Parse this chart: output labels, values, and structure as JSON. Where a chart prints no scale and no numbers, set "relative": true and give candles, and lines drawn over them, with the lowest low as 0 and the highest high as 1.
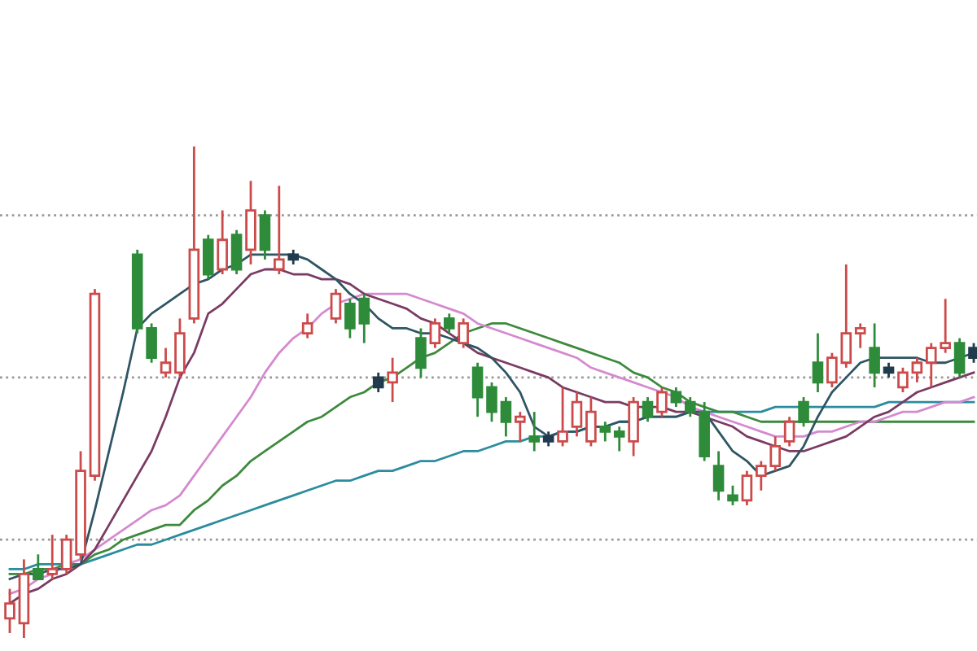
{
  "chart_data": {
    "type": "candlestick",
    "relative": true,
    "categories": [
      null,
      null,
      null,
      null,
      null,
      null,
      null,
      null,
      null,
      null,
      null,
      null,
      null,
      null,
      null,
      null,
      null,
      null,
      null,
      null,
      null,
      null,
      null,
      null,
      null,
      null,
      null,
      null,
      null,
      null,
      null,
      null,
      null,
      null,
      null,
      null,
      null,
      null,
      null,
      null,
      null,
      null,
      null,
      null,
      null,
      null,
      null,
      null,
      null,
      null,
      null,
      null,
      null,
      null,
      null,
      null,
      null,
      null,
      null,
      null,
      null,
      null,
      null,
      null,
      null,
      null,
      null,
      null,
      null
    ],
    "ohlc": [
      [
        0.04,
        0.1,
        0.01,
        0.07
      ],
      [
        0.03,
        0.16,
        0.0,
        0.13
      ],
      [
        0.14,
        0.17,
        0.12,
        0.12
      ],
      [
        0.13,
        0.21,
        0.12,
        0.14
      ],
      [
        0.14,
        0.21,
        0.13,
        0.2
      ],
      [
        0.17,
        0.38,
        0.16,
        0.34
      ],
      [
        0.33,
        0.71,
        0.32,
        0.7
      ],
      null,
      null,
      [
        0.78,
        0.79,
        0.62,
        0.63
      ],
      [
        0.63,
        0.64,
        0.56,
        0.57
      ],
      [
        0.54,
        0.59,
        0.53,
        0.56
      ],
      [
        0.54,
        0.65,
        0.53,
        0.62
      ],
      [
        0.65,
        1.0,
        0.64,
        0.79
      ],
      [
        0.81,
        0.82,
        0.73,
        0.74
      ],
      [
        0.75,
        0.87,
        0.74,
        0.81
      ],
      [
        0.82,
        0.83,
        0.74,
        0.75
      ],
      [
        0.79,
        0.93,
        0.76,
        0.87
      ],
      [
        0.86,
        0.87,
        0.77,
        0.79
      ],
      [
        0.75,
        0.92,
        0.74,
        0.77
      ],
      [
        0.78,
        0.79,
        0.76,
        0.77
      ],
      [
        0.62,
        0.66,
        0.61,
        0.64
      ],
      null,
      [
        0.65,
        0.71,
        0.64,
        0.7
      ],
      [
        0.68,
        0.69,
        0.61,
        0.63
      ],
      [
        0.69,
        0.7,
        0.6,
        0.64
      ],
      [
        0.53,
        0.54,
        0.5,
        0.51
      ],
      [
        0.52,
        0.57,
        0.48,
        0.54
      ],
      null,
      [
        0.61,
        0.63,
        0.53,
        0.55
      ],
      [
        0.6,
        0.65,
        0.59,
        0.64
      ],
      [
        0.65,
        0.66,
        0.62,
        0.63
      ],
      [
        0.6,
        0.65,
        0.59,
        0.64
      ],
      [
        0.55,
        0.56,
        0.45,
        0.49
      ],
      [
        0.51,
        0.52,
        0.44,
        0.46
      ],
      [
        0.48,
        0.49,
        0.41,
        0.44
      ],
      [
        0.44,
        0.46,
        0.4,
        0.45
      ],
      [
        0.41,
        0.46,
        0.38,
        0.4
      ],
      [
        0.41,
        0.42,
        0.39,
        0.4
      ],
      [
        0.4,
        0.51,
        0.39,
        0.42
      ],
      [
        0.43,
        0.5,
        0.41,
        0.48
      ],
      [
        0.4,
        0.49,
        0.39,
        0.46
      ],
      [
        0.43,
        0.44,
        0.4,
        0.42
      ],
      [
        0.42,
        0.43,
        0.38,
        0.41
      ],
      [
        0.4,
        0.49,
        0.37,
        0.48
      ],
      [
        0.48,
        0.49,
        0.44,
        0.45
      ],
      [
        0.46,
        0.51,
        0.45,
        0.5
      ],
      [
        0.5,
        0.51,
        0.47,
        0.48
      ],
      [
        0.48,
        0.49,
        0.45,
        0.46
      ],
      [
        0.46,
        0.48,
        0.36,
        0.37
      ],
      [
        0.35,
        0.38,
        0.28,
        0.3
      ],
      [
        0.29,
        0.31,
        0.27,
        0.28
      ],
      [
        0.28,
        0.34,
        0.27,
        0.33
      ],
      [
        0.33,
        0.36,
        0.3,
        0.35
      ],
      [
        0.35,
        0.41,
        0.34,
        0.39
      ],
      [
        0.4,
        0.45,
        0.39,
        0.44
      ],
      [
        0.48,
        0.49,
        0.43,
        0.44
      ],
      [
        0.56,
        0.62,
        0.5,
        0.52
      ],
      [
        0.52,
        0.58,
        0.51,
        0.57
      ],
      [
        0.56,
        0.76,
        0.55,
        0.62
      ],
      [
        0.62,
        0.64,
        0.59,
        0.63
      ],
      [
        0.59,
        0.64,
        0.51,
        0.54
      ],
      [
        0.55,
        0.56,
        0.53,
        0.54
      ],
      [
        0.51,
        0.55,
        0.5,
        0.54
      ],
      [
        0.54,
        0.57,
        0.52,
        0.56
      ],
      [
        0.56,
        0.6,
        0.51,
        0.59
      ],
      [
        0.59,
        0.69,
        0.58,
        0.6
      ],
      [
        0.6,
        0.61,
        0.53,
        0.54
      ],
      [
        0.59,
        0.6,
        0.56,
        0.57
      ]
    ],
    "colors": [
      "#cc4a4a",
      "#cc4a4a",
      "#2e8b3a",
      "#cc4a4a",
      "#cc4a4a",
      "#cc4a4a",
      "#cc4a4a",
      null,
      null,
      "#2e8b3a",
      "#2e8b3a",
      "#cc4a4a",
      "#cc4a4a",
      "#cc4a4a",
      "#2e8b3a",
      "#cc4a4a",
      "#2e8b3a",
      "#cc4a4a",
      "#2e8b3a",
      "#cc4a4a",
      "#1f3b4d",
      "#cc4a4a",
      null,
      "#cc4a4a",
      "#2e8b3a",
      "#2e8b3a",
      "#1f3b4d",
      "#cc4a4a",
      null,
      "#2e8b3a",
      "#cc4a4a",
      "#2e8b3a",
      "#cc4a4a",
      "#2e8b3a",
      "#2e8b3a",
      "#2e8b3a",
      "#cc4a4a",
      "#2e8b3a",
      "#1f3b4d",
      "#cc4a4a",
      "#cc4a4a",
      "#cc4a4a",
      "#2e8b3a",
      "#2e8b3a",
      "#cc4a4a",
      "#2e8b3a",
      "#cc4a4a",
      "#2e8b3a",
      "#2e8b3a",
      "#2e8b3a",
      "#2e8b3a",
      "#2e8b3a",
      "#cc4a4a",
      "#cc4a4a",
      "#cc4a4a",
      "#cc4a4a",
      "#2e8b3a",
      "#2e8b3a",
      "#cc4a4a",
      "#cc4a4a",
      "#cc4a4a",
      "#2e8b3a",
      "#1f3b4d",
      "#cc4a4a",
      "#cc4a4a",
      "#cc4a4a",
      "#cc4a4a",
      "#2e8b3a",
      "#1f3b4d"
    ],
    "series": [
      {
        "type": "line",
        "color": "#2b8c9e",
        "values": [
          0.14,
          0.14,
          0.15,
          0.15,
          0.15,
          0.15,
          0.16,
          0.17,
          0.18,
          0.19,
          0.19,
          0.2,
          0.21,
          0.22,
          0.23,
          0.24,
          0.25,
          0.26,
          0.27,
          0.28,
          0.29,
          0.3,
          0.31,
          0.32,
          0.32,
          0.33,
          0.34,
          0.34,
          0.35,
          0.36,
          0.36,
          0.37,
          0.38,
          0.38,
          0.39,
          0.4,
          0.4,
          0.41,
          0.41,
          0.42,
          0.42,
          0.43,
          0.43,
          0.44,
          0.44,
          0.45,
          0.45,
          0.45,
          0.46,
          0.46,
          0.46,
          0.46,
          0.46,
          0.46,
          0.47,
          0.47,
          0.47,
          0.47,
          0.47,
          0.47,
          0.47,
          0.47,
          0.48,
          0.48,
          0.48,
          0.48,
          0.48,
          0.48,
          0.48
        ]
      },
      {
        "type": "line",
        "color": "#3d8a3d",
        "values": [
          0.13,
          0.13,
          0.14,
          0.14,
          0.15,
          0.15,
          0.17,
          0.18,
          0.2,
          0.21,
          0.22,
          0.23,
          0.23,
          0.26,
          0.28,
          0.31,
          0.33,
          0.36,
          0.38,
          0.4,
          0.42,
          0.44,
          0.45,
          0.47,
          0.49,
          0.5,
          0.52,
          0.53,
          0.55,
          0.57,
          0.58,
          0.6,
          0.62,
          0.63,
          0.64,
          0.64,
          0.63,
          0.62,
          0.61,
          0.6,
          0.59,
          0.58,
          0.57,
          0.56,
          0.54,
          0.53,
          0.51,
          0.5,
          0.48,
          0.47,
          0.46,
          0.46,
          0.45,
          0.44,
          0.44,
          0.44,
          0.44,
          0.44,
          0.44,
          0.44,
          0.44,
          0.44,
          0.44,
          0.44,
          0.44,
          0.44,
          0.44,
          0.44,
          0.44
        ]
      },
      {
        "type": "line",
        "color": "#d58ad0",
        "values": [
          0.09,
          0.1,
          0.12,
          0.13,
          0.15,
          0.16,
          0.18,
          0.2,
          0.22,
          0.24,
          0.26,
          0.27,
          0.29,
          0.33,
          0.37,
          0.41,
          0.45,
          0.49,
          0.54,
          0.58,
          0.61,
          0.63,
          0.66,
          0.68,
          0.69,
          0.7,
          0.7,
          0.7,
          0.7,
          0.69,
          0.68,
          0.67,
          0.66,
          0.64,
          0.63,
          0.62,
          0.61,
          0.6,
          0.59,
          0.58,
          0.57,
          0.55,
          0.54,
          0.53,
          0.52,
          0.51,
          0.5,
          0.49,
          0.47,
          0.46,
          0.45,
          0.44,
          0.43,
          0.42,
          0.41,
          0.41,
          0.41,
          0.42,
          0.42,
          0.43,
          0.44,
          0.44,
          0.45,
          0.46,
          0.46,
          0.47,
          0.48,
          0.48,
          0.49
        ]
      },
      {
        "type": "line",
        "color": "#7a3b63",
        "values": [
          0.07,
          0.09,
          0.1,
          0.12,
          0.13,
          0.15,
          0.18,
          0.23,
          0.28,
          0.33,
          0.38,
          0.45,
          0.53,
          0.58,
          0.66,
          0.68,
          0.71,
          0.74,
          0.75,
          0.75,
          0.74,
          0.74,
          0.73,
          0.73,
          0.72,
          0.7,
          0.69,
          0.68,
          0.67,
          0.65,
          0.64,
          0.62,
          0.6,
          0.58,
          0.57,
          0.56,
          0.55,
          0.54,
          0.53,
          0.51,
          0.5,
          0.49,
          0.48,
          0.48,
          0.47,
          0.47,
          0.47,
          0.46,
          0.46,
          0.45,
          0.44,
          0.43,
          0.41,
          0.4,
          0.39,
          0.38,
          0.38,
          0.39,
          0.4,
          0.41,
          0.43,
          0.45,
          0.46,
          0.48,
          0.5,
          0.51,
          0.52,
          0.53,
          0.54
        ]
      },
      {
        "type": "line",
        "color": "#2f5563",
        "values": [
          0.12,
          0.13,
          0.13,
          0.14,
          0.14,
          0.15,
          0.26,
          0.38,
          0.5,
          0.63,
          0.66,
          0.68,
          0.7,
          0.72,
          0.73,
          0.75,
          0.76,
          0.78,
          0.78,
          0.78,
          0.78,
          0.77,
          0.75,
          0.73,
          0.7,
          0.68,
          0.65,
          0.63,
          0.63,
          0.62,
          0.62,
          0.61,
          0.6,
          0.59,
          0.57,
          0.54,
          0.5,
          0.43,
          0.41,
          0.42,
          0.42,
          0.43,
          0.43,
          0.44,
          0.44,
          0.45,
          0.45,
          0.45,
          0.46,
          0.46,
          0.42,
          0.38,
          0.36,
          0.33,
          0.34,
          0.35,
          0.39,
          0.45,
          0.5,
          0.53,
          0.56,
          0.57,
          0.57,
          0.57,
          0.57,
          0.56,
          0.56,
          0.57,
          0.58
        ]
      }
    ],
    "ref_lines": [
      {
        "axis": "y",
        "value": 0.86,
        "color": "#999999",
        "line_style": "dotted"
      },
      {
        "axis": "y",
        "value": 0.53,
        "color": "#999999",
        "line_style": "dotted"
      },
      {
        "axis": "y",
        "value": 0.2,
        "color": "#999999",
        "line_style": "dotted"
      }
    ]
  }
}
